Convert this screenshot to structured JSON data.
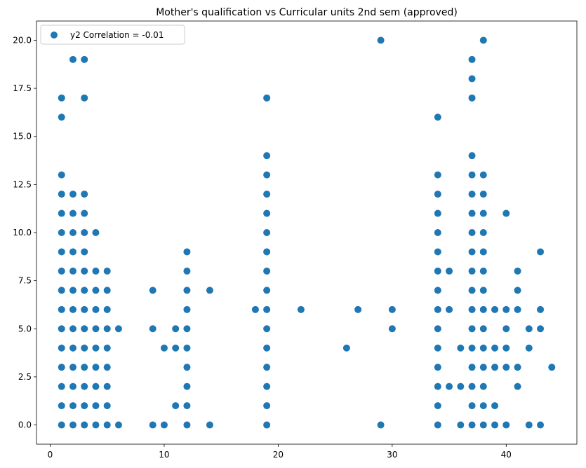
{
  "chart_data": {
    "type": "scatter",
    "title": "Mother's qualification vs Curricular units 2nd sem (approved)",
    "xlabel": "",
    "ylabel": "",
    "xlim": [
      -1.2,
      46.2
    ],
    "ylim": [
      -1.0,
      21.0
    ],
    "x_ticks": [
      0,
      10,
      20,
      30,
      40
    ],
    "y_ticks": [
      0.0,
      2.5,
      5.0,
      7.5,
      10.0,
      12.5,
      15.0,
      17.5,
      20.0
    ],
    "x_tick_labels": [
      "0",
      "10",
      "20",
      "30",
      "40"
    ],
    "y_tick_labels": [
      "0.0",
      "2.5",
      "5.0",
      "7.5",
      "10.0",
      "12.5",
      "15.0",
      "17.5",
      "20.0"
    ],
    "grid": false,
    "legend_position": "top-left",
    "series": [
      {
        "name": "y2 Correlation = -0.01",
        "color": "#1f77b4",
        "points": [
          [
            1,
            0
          ],
          [
            1,
            1
          ],
          [
            1,
            2
          ],
          [
            1,
            3
          ],
          [
            1,
            4
          ],
          [
            1,
            5
          ],
          [
            1,
            6
          ],
          [
            1,
            7
          ],
          [
            1,
            8
          ],
          [
            1,
            9
          ],
          [
            1,
            10
          ],
          [
            1,
            11
          ],
          [
            1,
            12
          ],
          [
            1,
            13
          ],
          [
            1,
            16
          ],
          [
            1,
            17
          ],
          [
            2,
            0
          ],
          [
            2,
            1
          ],
          [
            2,
            2
          ],
          [
            2,
            3
          ],
          [
            2,
            4
          ],
          [
            2,
            5
          ],
          [
            2,
            6
          ],
          [
            2,
            7
          ],
          [
            2,
            8
          ],
          [
            2,
            9
          ],
          [
            2,
            10
          ],
          [
            2,
            11
          ],
          [
            2,
            12
          ],
          [
            2,
            19
          ],
          [
            3,
            0
          ],
          [
            3,
            1
          ],
          [
            3,
            2
          ],
          [
            3,
            3
          ],
          [
            3,
            4
          ],
          [
            3,
            5
          ],
          [
            3,
            6
          ],
          [
            3,
            7
          ],
          [
            3,
            8
          ],
          [
            3,
            9
          ],
          [
            3,
            10
          ],
          [
            3,
            11
          ],
          [
            3,
            12
          ],
          [
            3,
            17
          ],
          [
            3,
            19
          ],
          [
            4,
            0
          ],
          [
            4,
            1
          ],
          [
            4,
            2
          ],
          [
            4,
            3
          ],
          [
            4,
            4
          ],
          [
            4,
            5
          ],
          [
            4,
            6
          ],
          [
            4,
            7
          ],
          [
            4,
            8
          ],
          [
            4,
            10
          ],
          [
            5,
            0
          ],
          [
            5,
            1
          ],
          [
            5,
            2
          ],
          [
            5,
            3
          ],
          [
            5,
            4
          ],
          [
            5,
            5
          ],
          [
            5,
            6
          ],
          [
            5,
            7
          ],
          [
            5,
            8
          ],
          [
            6,
            0
          ],
          [
            6,
            5
          ],
          [
            9,
            0
          ],
          [
            9,
            5
          ],
          [
            9,
            7
          ],
          [
            10,
            0
          ],
          [
            10,
            4
          ],
          [
            11,
            1
          ],
          [
            11,
            4
          ],
          [
            11,
            5
          ],
          [
            12,
            0
          ],
          [
            12,
            1
          ],
          [
            12,
            2
          ],
          [
            12,
            3
          ],
          [
            12,
            4
          ],
          [
            12,
            5
          ],
          [
            12,
            6
          ],
          [
            12,
            7
          ],
          [
            12,
            8
          ],
          [
            12,
            9
          ],
          [
            14,
            0
          ],
          [
            14,
            7
          ],
          [
            18,
            6
          ],
          [
            19,
            0
          ],
          [
            19,
            1
          ],
          [
            19,
            2
          ],
          [
            19,
            3
          ],
          [
            19,
            4
          ],
          [
            19,
            5
          ],
          [
            19,
            6
          ],
          [
            19,
            7
          ],
          [
            19,
            8
          ],
          [
            19,
            9
          ],
          [
            19,
            10
          ],
          [
            19,
            11
          ],
          [
            19,
            12
          ],
          [
            19,
            13
          ],
          [
            19,
            14
          ],
          [
            19,
            17
          ],
          [
            22,
            6
          ],
          [
            26,
            4
          ],
          [
            27,
            6
          ],
          [
            29,
            0
          ],
          [
            29,
            20
          ],
          [
            30,
            5
          ],
          [
            30,
            6
          ],
          [
            34,
            0
          ],
          [
            34,
            1
          ],
          [
            34,
            2
          ],
          [
            34,
            3
          ],
          [
            34,
            4
          ],
          [
            34,
            5
          ],
          [
            34,
            6
          ],
          [
            34,
            7
          ],
          [
            34,
            8
          ],
          [
            34,
            9
          ],
          [
            34,
            10
          ],
          [
            34,
            11
          ],
          [
            34,
            12
          ],
          [
            34,
            13
          ],
          [
            34,
            16
          ],
          [
            35,
            2
          ],
          [
            35,
            6
          ],
          [
            35,
            8
          ],
          [
            36,
            0
          ],
          [
            36,
            2
          ],
          [
            36,
            4
          ],
          [
            37,
            0
          ],
          [
            37,
            1
          ],
          [
            37,
            2
          ],
          [
            37,
            3
          ],
          [
            37,
            4
          ],
          [
            37,
            5
          ],
          [
            37,
            6
          ],
          [
            37,
            7
          ],
          [
            37,
            8
          ],
          [
            37,
            9
          ],
          [
            37,
            10
          ],
          [
            37,
            11
          ],
          [
            37,
            12
          ],
          [
            37,
            13
          ],
          [
            37,
            14
          ],
          [
            37,
            17
          ],
          [
            37,
            18
          ],
          [
            37,
            19
          ],
          [
            38,
            0
          ],
          [
            38,
            1
          ],
          [
            38,
            2
          ],
          [
            38,
            3
          ],
          [
            38,
            4
          ],
          [
            38,
            5
          ],
          [
            38,
            6
          ],
          [
            38,
            7
          ],
          [
            38,
            8
          ],
          [
            38,
            9
          ],
          [
            38,
            10
          ],
          [
            38,
            11
          ],
          [
            38,
            12
          ],
          [
            38,
            13
          ],
          [
            38,
            20
          ],
          [
            39,
            0
          ],
          [
            39,
            1
          ],
          [
            39,
            3
          ],
          [
            39,
            4
          ],
          [
            39,
            6
          ],
          [
            40,
            0
          ],
          [
            40,
            3
          ],
          [
            40,
            4
          ],
          [
            40,
            5
          ],
          [
            40,
            6
          ],
          [
            40,
            11
          ],
          [
            41,
            2
          ],
          [
            41,
            3
          ],
          [
            41,
            6
          ],
          [
            41,
            7
          ],
          [
            41,
            8
          ],
          [
            42,
            0
          ],
          [
            42,
            4
          ],
          [
            42,
            5
          ],
          [
            43,
            0
          ],
          [
            43,
            5
          ],
          [
            43,
            6
          ],
          [
            43,
            9
          ],
          [
            44,
            3
          ]
        ]
      }
    ]
  }
}
